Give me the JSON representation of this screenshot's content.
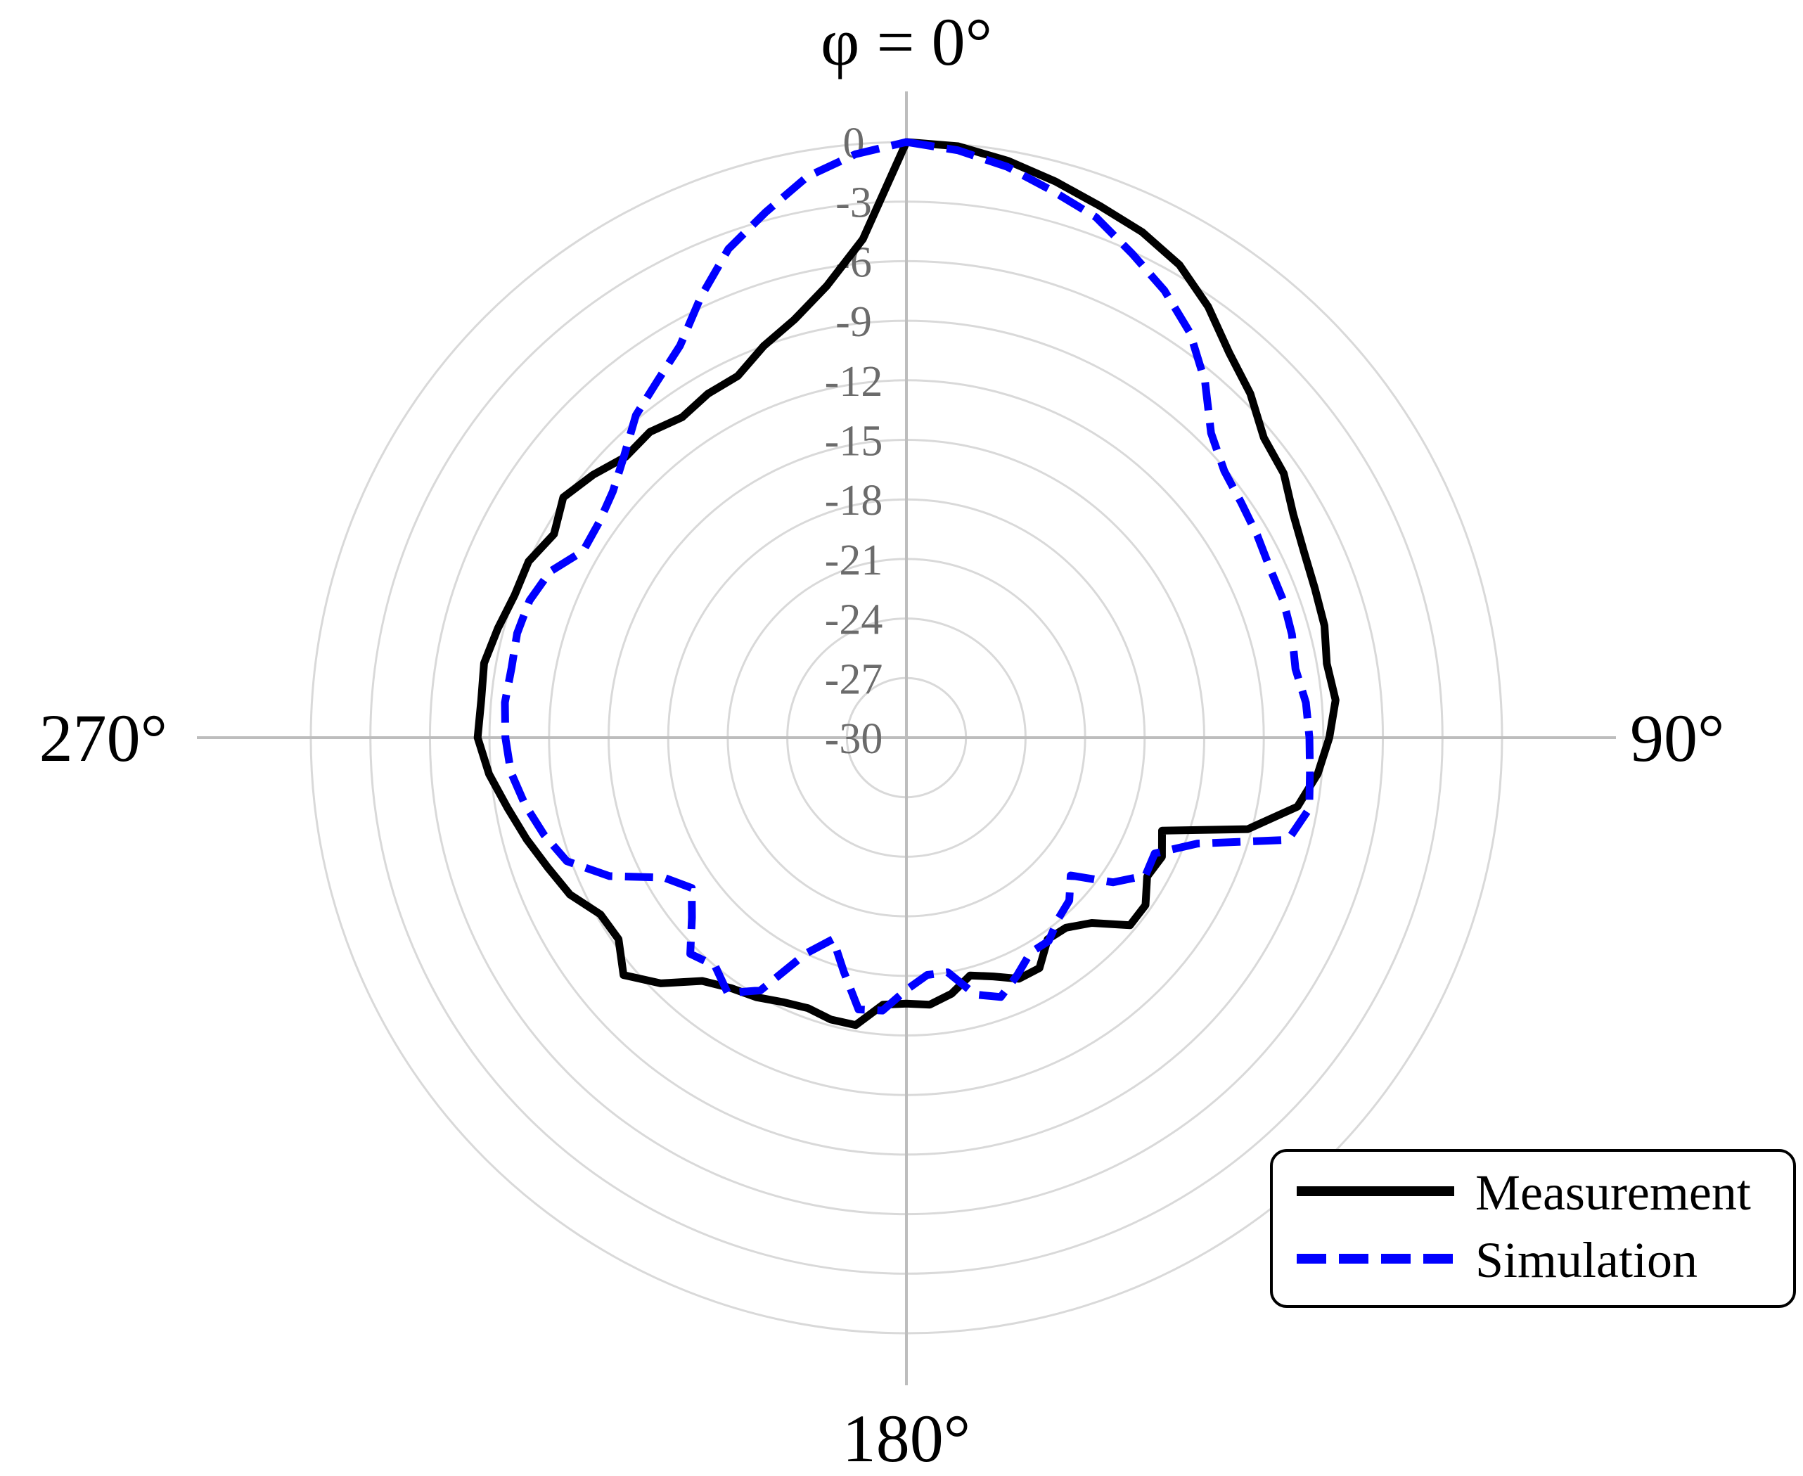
{
  "chart_data": {
    "type": "polar-line",
    "title": "",
    "angle_labels": [
      {
        "deg": 0,
        "text": "φ = 0°"
      },
      {
        "deg": 90,
        "text": "90°"
      },
      {
        "deg": 180,
        "text": "180°"
      },
      {
        "deg": 270,
        "text": "270°"
      }
    ],
    "radial_ticks": [
      0,
      -3,
      -6,
      -9,
      -12,
      -15,
      -18,
      -21,
      -24,
      -27,
      -30
    ],
    "radial_range": [
      -30,
      0
    ],
    "grid_ring_values": [
      0,
      -3,
      -6,
      -9,
      -12,
      -15,
      -18,
      -21,
      -24,
      -27,
      -30,
      -33,
      -36,
      -39
    ],
    "angular_direction": "clockwise",
    "legend_position": "bottom-right",
    "series": [
      {
        "name": "Measurement",
        "color": "#000000",
        "style": "solid",
        "angles": [
          0,
          5,
          10,
          15,
          20,
          25,
          30,
          35,
          40,
          45,
          50,
          55,
          60,
          65,
          70,
          75,
          80,
          85,
          90,
          95,
          100,
          105,
          110,
          115,
          120,
          125,
          130,
          135,
          140,
          145,
          150,
          155,
          160,
          165,
          170,
          175,
          180,
          185,
          190,
          195,
          200,
          205,
          210,
          215,
          220,
          225,
          230,
          235,
          240,
          245,
          250,
          255,
          260,
          265,
          270,
          275,
          280,
          285,
          290,
          295,
          300,
          305,
          310,
          315,
          320,
          325,
          330,
          335,
          340,
          345,
          350,
          355
        ],
        "values": [
          0,
          -0.1,
          -0.5,
          -1,
          -1.5,
          -1.9,
          -2.5,
          -3.5,
          -4.7,
          -5.5,
          -6.5,
          -6.8,
          -7.5,
          -7.9,
          -8.1,
          -8.2,
          -8.5,
          -8.3,
          -8.7,
          -9.2,
          -10.0,
          -12.2,
          -16.3,
          -15.8,
          -16.0,
          -15.3,
          -15.3,
          -16.8,
          -17.5,
          -17.6,
          -16.6,
          -16.6,
          -17.2,
          -17.6,
          -16.9,
          -16.5,
          -16.6,
          -16.5,
          -15.3,
          -15.3,
          -15.5,
          -15.3,
          -14.9,
          -14.6,
          -14.0,
          -12.5,
          -11.4,
          -12.3,
          -12.2,
          -11.3,
          -10.8,
          -10.2,
          -9.6,
          -8.9,
          -8.4,
          -8.5,
          -8.4,
          -8.7,
          -9.0,
          -9.0,
          -9.5,
          -8.9,
          -9.4,
          -10.0,
          -9.9,
          -10.3,
          -10.0,
          -9.9,
          -9.0,
          -8.2,
          -6.9,
          -4.8
        ]
      },
      {
        "name": "Simulation",
        "color": "#0000ff",
        "style": "dashed",
        "angles": [
          0,
          5,
          10,
          15,
          20,
          25,
          30,
          35,
          40,
          45,
          50,
          55,
          60,
          65,
          70,
          75,
          80,
          85,
          90,
          95,
          100,
          105,
          110,
          115,
          120,
          125,
          130,
          135,
          140,
          145,
          150,
          155,
          160,
          165,
          170,
          175,
          180,
          185,
          190,
          195,
          200,
          205,
          210,
          215,
          220,
          225,
          230,
          235,
          240,
          245,
          250,
          255,
          260,
          265,
          270,
          275,
          280,
          285,
          290,
          295,
          300,
          305,
          310,
          315,
          320,
          325,
          330,
          335,
          340,
          345,
          350,
          355
        ],
        "values": [
          0,
          -0.3,
          -0.8,
          -1.5,
          -2.1,
          -3.1,
          -4.0,
          -5.1,
          -6.6,
          -8.3,
          -9.1,
          -9.4,
          -9.6,
          -9.8,
          -9.8,
          -9.9,
          -10.1,
          -9.8,
          -9.7,
          -9.6,
          -9.4,
          -10.1,
          -14.4,
          -16.2,
          -16.1,
          -17.3,
          -19.2,
          -18.4,
          -18.1,
          -17.5,
          -17.5,
          -16.8,
          -16.1,
          -16.6,
          -18.0,
          -18.0,
          -17.3,
          -16.2,
          -16.1,
          -17.8,
          -19.2,
          -18.0,
          -15.3,
          -14.3,
          -15.0,
          -14.6,
          -15.9,
          -16.8,
          -15.9,
          -13.5,
          -11.8,
          -11.1,
          -10.5,
          -10.0,
          -9.8,
          -9.7,
          -9.8,
          -9.7,
          -9.8,
          -10.2,
          -11.2,
          -11.1,
          -10.7,
          -9.9,
          -8.8,
          -8.1,
          -7.2,
          -5.5,
          -3.8,
          -2.6,
          -1.3,
          -0.5
        ]
      }
    ]
  }
}
